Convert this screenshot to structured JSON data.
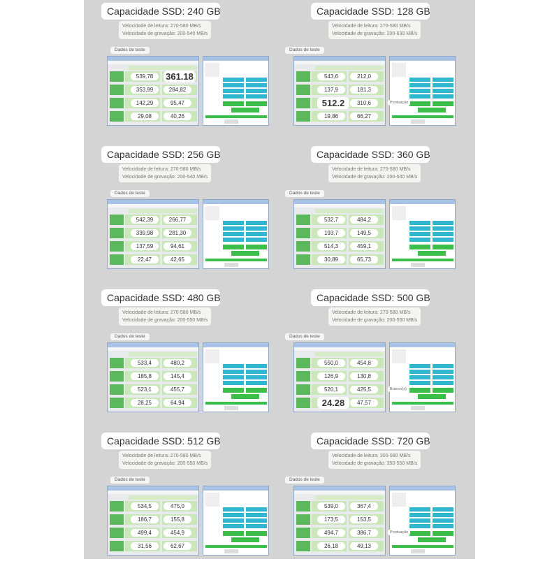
{
  "panels": [
    {
      "title": "Capacidade SSD: 240 GB",
      "read": "Velocidade de leitura: 270-580 MB/s",
      "write": "Velocidade de gravação: 200-540 MB/s",
      "test": "Dados de teste",
      "values": [
        "539,78",
        "361.18",
        "353,99",
        "284,82",
        "142,29",
        "95,47",
        "29,08",
        "40,26"
      ],
      "big": 1
    },
    {
      "title": "Capacidade SSD: 128 GB",
      "read": "Velocidade de leitura: 270-580 MB/s",
      "write": "Velocidade de gravação: 200-630 MB/s",
      "test": "Dados de teste",
      "values": [
        "543,6",
        "212,0",
        "137,9",
        "181,3",
        "512.2",
        "310,6",
        "19,86",
        "66,27"
      ],
      "big": 4,
      "note": "Pontuação"
    },
    {
      "title": "Capacidade SSD: 256 GB",
      "read": "Velocidade de leitura: 270-580 MB/s",
      "write": "Velocidade de gravação: 200-540 MB/s",
      "test": "Dados de teste",
      "values": [
        "542,39",
        "266,77",
        "339,98",
        "281,30",
        "137,59",
        "94,61",
        "22,47",
        "42,65"
      ]
    },
    {
      "title": "Capacidade SSD: 360 GB",
      "read": "Velocidade de leitura: 270-580 MB/s",
      "write": "Velocidade de gravação: 200-540 MB/s",
      "test": "Dados de teste",
      "values": [
        "532,7",
        "484,2",
        "193,7",
        "149,5",
        "514,3",
        "459,1",
        "30,89",
        "65,73"
      ]
    },
    {
      "title": "Capacidade SSD: 480 GB",
      "read": "Velocidade de leitura: 270-580 MB/s",
      "write": "Velocidade de gravação: 200-550 MB/s",
      "test": "Dados de teste",
      "values": [
        "533,4",
        "480,2",
        "185,8",
        "145,4",
        "523,1",
        "455,7",
        "28,25",
        "64,94"
      ]
    },
    {
      "title": "Capacidade SSD: 500 GB",
      "read": "Velocidade de leitura: 270-580 MB/s",
      "write": "Velocidade de gravação: 200-550 MB/s",
      "test": "Dados de teste",
      "values": [
        "550,0",
        "454,8",
        "126,9",
        "130,8",
        "520,1",
        "425,5",
        "24.28",
        "47,57"
      ],
      "big": 6,
      "note": "Branco(s)"
    },
    {
      "title": "Capacidade SSD: 512 GB",
      "read": "Velocidade de leitura: 270-580 MB/s",
      "write": "Velocidade de gravação: 200-550 MB/s",
      "test": "Dados de teste",
      "values": [
        "534,5",
        "475,0",
        "186,7",
        "155,8",
        "499,4",
        "454,9",
        "31,56",
        "62,67"
      ]
    },
    {
      "title": "Capacidade SSD: 720 GB",
      "read": "Velocidade de leitura: 300-580 MB/s",
      "write": "Velocidade de gravação: 350-550 MB/s",
      "test": "Dados de teste",
      "values": [
        "539,0",
        "367,4",
        "173,5",
        "153,5",
        "494,7",
        "386,7",
        "26,18",
        "49,13"
      ],
      "note": "Pontuação"
    }
  ]
}
